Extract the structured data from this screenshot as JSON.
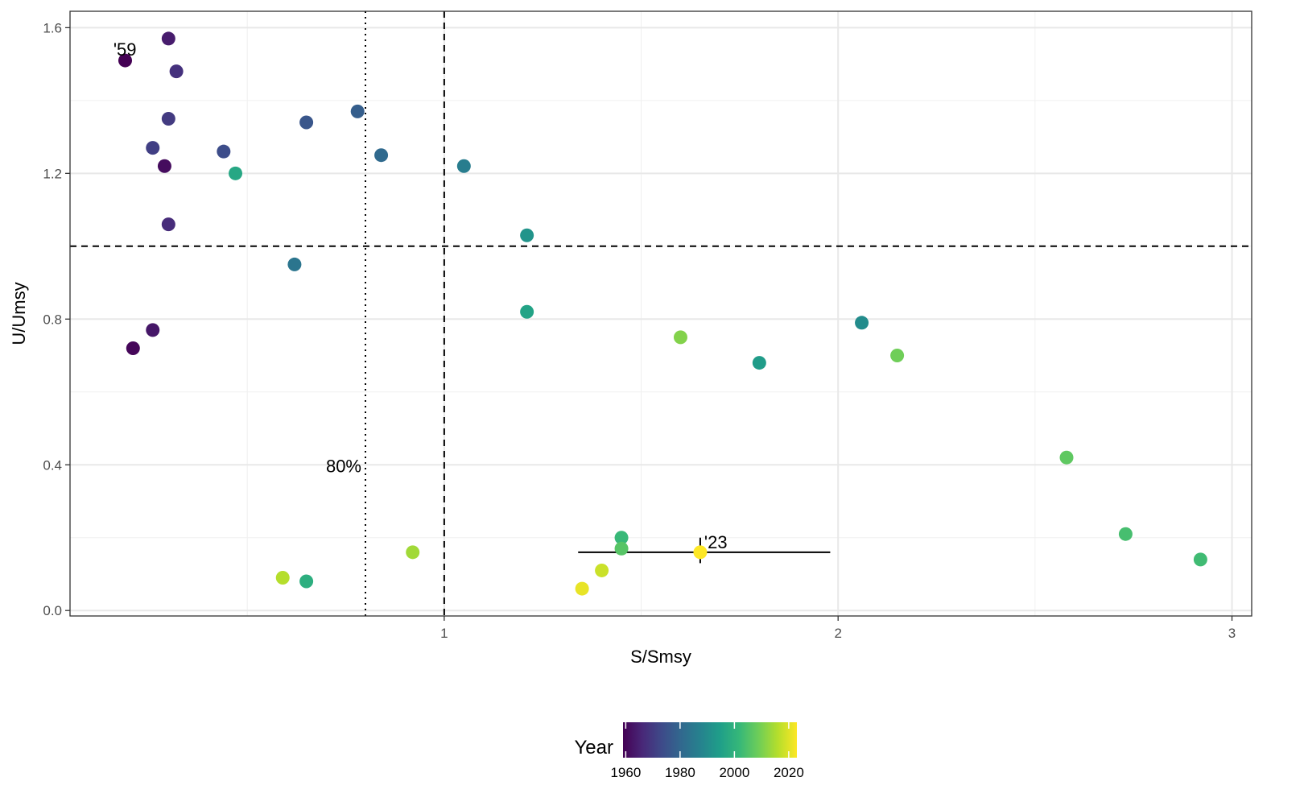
{
  "chart_data": {
    "type": "scatter",
    "xlabel": "S/Smsy",
    "ylabel": "U/Umsy",
    "xlim": [
      0.05,
      3.05
    ],
    "ylim": [
      -0.015,
      1.645
    ],
    "x_ticks": [
      1,
      2,
      3
    ],
    "x_minor_ticks": [
      0.5,
      1.5,
      2.5
    ],
    "y_ticks": [
      0.0,
      0.4,
      0.8,
      1.2,
      1.6
    ],
    "y_tick_labels": [
      "0.0",
      "0.4",
      "0.8",
      "1.2",
      "1.6"
    ],
    "y_minor_ticks": [
      0.2,
      0.6,
      1.0,
      1.4
    ],
    "grid": true,
    "reference_lines": [
      {
        "orientation": "vertical",
        "value": 1.0,
        "style": "dashed"
      },
      {
        "orientation": "vertical",
        "value": 0.8,
        "style": "dotted"
      },
      {
        "orientation": "horizontal",
        "value": 1.0,
        "style": "dashed"
      }
    ],
    "annotations": [
      {
        "text": "'59",
        "x": 0.16,
        "y": 1.51
      },
      {
        "text": "80%",
        "x": 0.8,
        "y": 0.4
      },
      {
        "text": "'23",
        "x": 1.65,
        "y": 0.16
      }
    ],
    "error_bar": {
      "x": 1.65,
      "y": 0.16,
      "x_low": 1.34,
      "x_high": 1.98,
      "y_low": 0.13,
      "y_high": 0.2
    },
    "color_legend": {
      "title": "Year",
      "min": 1959,
      "max": 2023,
      "ticks": [
        1960,
        1980,
        2000,
        2020
      ],
      "tick_labels": [
        "1960",
        "1980",
        "2000",
        "2020"
      ],
      "colormap": [
        "#440154",
        "#482878",
        "#3E4A89",
        "#31688E",
        "#26828E",
        "#1F9E89",
        "#35B779",
        "#6DCD59",
        "#B4DE2C",
        "#FDE725"
      ]
    },
    "points": [
      {
        "year": 1959,
        "x": 0.19,
        "y": 1.51
      },
      {
        "year": 1960,
        "x": 0.21,
        "y": 0.72
      },
      {
        "year": 1961,
        "x": 0.29,
        "y": 1.22
      },
      {
        "year": 1963,
        "x": 0.26,
        "y": 0.77
      },
      {
        "year": 1964,
        "x": 0.3,
        "y": 1.57
      },
      {
        "year": 1967,
        "x": 0.3,
        "y": 1.06
      },
      {
        "year": 1968,
        "x": 0.32,
        "y": 1.48
      },
      {
        "year": 1970,
        "x": 0.3,
        "y": 1.35
      },
      {
        "year": 1971,
        "x": 0.26,
        "y": 1.27
      },
      {
        "year": 1974,
        "x": 0.44,
        "y": 1.26
      },
      {
        "year": 1976,
        "x": 0.65,
        "y": 1.34
      },
      {
        "year": 1978,
        "x": 0.78,
        "y": 1.37
      },
      {
        "year": 1981,
        "x": 0.84,
        "y": 1.25
      },
      {
        "year": 1984,
        "x": 0.62,
        "y": 0.95
      },
      {
        "year": 1986,
        "x": 1.05,
        "y": 1.22
      },
      {
        "year": 1990,
        "x": 2.06,
        "y": 0.79
      },
      {
        "year": 1992,
        "x": 1.21,
        "y": 1.03
      },
      {
        "year": 1994,
        "x": 1.8,
        "y": 0.68
      },
      {
        "year": 1996,
        "x": 1.21,
        "y": 0.82
      },
      {
        "year": 1997,
        "x": 0.47,
        "y": 1.2
      },
      {
        "year": 1999,
        "x": 0.65,
        "y": 0.08
      },
      {
        "year": 2002,
        "x": 1.45,
        "y": 0.2
      },
      {
        "year": 2003,
        "x": 2.92,
        "y": 0.14
      },
      {
        "year": 2004,
        "x": 2.73,
        "y": 0.21
      },
      {
        "year": 2006,
        "x": 1.45,
        "y": 0.17
      },
      {
        "year": 2007,
        "x": 2.58,
        "y": 0.42
      },
      {
        "year": 2009,
        "x": 2.15,
        "y": 0.7
      },
      {
        "year": 2011,
        "x": 1.6,
        "y": 0.75
      },
      {
        "year": 2014,
        "x": 0.92,
        "y": 0.16
      },
      {
        "year": 2016,
        "x": 0.59,
        "y": 0.09
      },
      {
        "year": 2018,
        "x": 1.4,
        "y": 0.11
      },
      {
        "year": 2021,
        "x": 1.35,
        "y": 0.06
      },
      {
        "year": 2023,
        "x": 1.65,
        "y": 0.16
      }
    ]
  }
}
